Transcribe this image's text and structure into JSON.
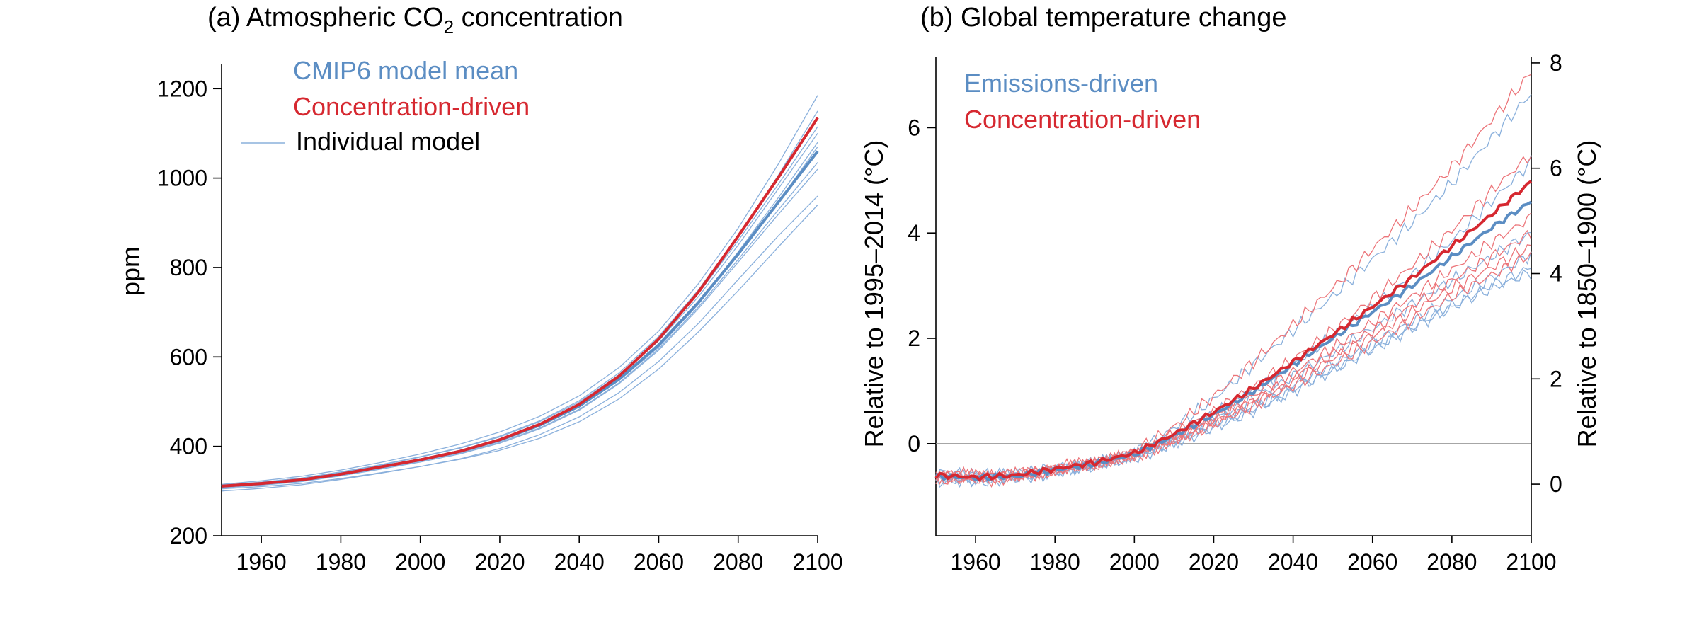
{
  "colors": {
    "emissions": "#5b8dc3",
    "concentration": "#d62830",
    "individual": "#8ab0dc",
    "individual_red": "#ec7479",
    "zero_line": "#999999"
  },
  "chart_data": [
    {
      "type": "line",
      "title_prefix": "(a) Atmospheric CO",
      "title_sub": "2",
      "title_suffix": " concentration",
      "ylabel": "ppm",
      "xlim": [
        1950,
        2100
      ],
      "ylim": [
        200,
        1240
      ],
      "xticks": [
        1960,
        1980,
        2000,
        2020,
        2040,
        2060,
        2080,
        2100
      ],
      "yticks": [
        200,
        400,
        600,
        800,
        1000,
        1200
      ],
      "legend": {
        "placement": "top-left",
        "entries": [
          "CMIP6 model mean",
          "Concentration-driven",
          "Individual model"
        ]
      },
      "x": [
        1950,
        1960,
        1970,
        1980,
        1990,
        2000,
        2010,
        2020,
        2030,
        2040,
        2050,
        2060,
        2070,
        2080,
        2090,
        2100
      ],
      "series": [
        {
          "name": "CMIP6 model mean",
          "role": "mean-emissions",
          "values": [
            311,
            317,
            325,
            338,
            354,
            370,
            389,
            414,
            447,
            490,
            550,
            627,
            722,
            830,
            945,
            1060
          ]
        },
        {
          "name": "Concentration-driven",
          "role": "mean-concentration",
          "values": [
            311,
            317,
            325,
            338,
            354,
            370,
            389,
            415,
            449,
            494,
            557,
            640,
            745,
            870,
            1000,
            1135
          ]
        }
      ],
      "individual_models": [
        [
          312,
          320,
          329,
          342,
          358,
          376,
          396,
          421,
          455,
          499,
          560,
          640,
          742,
          860,
          985,
          1115
        ],
        [
          309,
          315,
          323,
          336,
          352,
          368,
          387,
          412,
          445,
          488,
          547,
          622,
          718,
          828,
          945,
          1070
        ],
        [
          300,
          306,
          314,
          326,
          340,
          355,
          372,
          395,
          426,
          466,
          520,
          590,
          675,
          773,
          870,
          960
        ],
        [
          307,
          313,
          321,
          334,
          349,
          365,
          383,
          407,
          439,
          481,
          540,
          615,
          708,
          812,
          918,
          1020
        ],
        [
          315,
          323,
          333,
          347,
          364,
          383,
          405,
          432,
          467,
          513,
          576,
          658,
          764,
          888,
          1030,
          1185
        ],
        [
          310,
          316,
          324,
          337,
          353,
          369,
          388,
          413,
          446,
          489,
          549,
          625,
          722,
          835,
          955,
          1080
        ],
        [
          305,
          310,
          317,
          328,
          341,
          355,
          371,
          391,
          418,
          455,
          506,
          573,
          656,
          748,
          845,
          940
        ],
        [
          313,
          320,
          329,
          343,
          359,
          377,
          397,
          423,
          457,
          502,
          564,
          646,
          750,
          872,
          1005,
          1150
        ],
        [
          308,
          314,
          322,
          335,
          351,
          367,
          385,
          409,
          441,
          483,
          542,
          618,
          712,
          818,
          928,
          1035
        ],
        [
          311,
          317,
          326,
          339,
          355,
          372,
          391,
          417,
          450,
          495,
          557,
          636,
          735,
          850,
          975,
          1100
        ]
      ]
    },
    {
      "type": "line",
      "title": "(b) Global temperature change",
      "ylabel": "Relative to 1995–2014 (°C)",
      "ylabel_right": "Relative to 1850–1900 (°C)",
      "xlim": [
        1950,
        2100
      ],
      "ylim": [
        -1.75,
        7.35
      ],
      "yticks": [
        0,
        2,
        4,
        6
      ],
      "ylim_right": [
        -0.98,
        8.12
      ],
      "yticks_right": [
        0,
        2,
        4,
        6,
        8
      ],
      "xticks": [
        1960,
        1980,
        2000,
        2020,
        2040,
        2060,
        2080,
        2100
      ],
      "zero_line": 0,
      "legend": {
        "placement": "top-left",
        "entries": [
          "Emissions-driven",
          "Concentration-driven"
        ]
      },
      "x": [
        1950,
        1960,
        1970,
        1980,
        1990,
        2000,
        2010,
        2020,
        2030,
        2040,
        2050,
        2060,
        2070,
        2080,
        2090,
        2100
      ],
      "series": [
        {
          "name": "Emissions-driven",
          "role": "mean-emissions",
          "values": [
            -0.62,
            -0.65,
            -0.62,
            -0.5,
            -0.38,
            -0.2,
            0.15,
            0.55,
            1.0,
            1.5,
            2.0,
            2.5,
            3.0,
            3.55,
            4.1,
            4.6
          ]
        },
        {
          "name": "Concentration-driven",
          "role": "mean-concentration",
          "values": [
            -0.6,
            -0.64,
            -0.6,
            -0.48,
            -0.36,
            -0.18,
            0.18,
            0.6,
            1.05,
            1.55,
            2.07,
            2.6,
            3.15,
            3.75,
            4.35,
            4.98
          ]
        }
      ],
      "individual_models_emissions": [
        [
          -0.7,
          -0.72,
          -0.68,
          -0.55,
          -0.4,
          -0.18,
          0.3,
          0.85,
          1.5,
          2.15,
          2.8,
          3.5,
          4.2,
          4.95,
          5.8,
          6.65
        ],
        [
          -0.55,
          -0.6,
          -0.58,
          -0.48,
          -0.36,
          -0.22,
          0.15,
          0.55,
          1.0,
          1.5,
          2.05,
          2.6,
          3.2,
          3.85,
          4.6,
          5.35
        ],
        [
          -0.65,
          -0.68,
          -0.64,
          -0.52,
          -0.42,
          -0.28,
          0.0,
          0.3,
          0.62,
          1.0,
          1.4,
          1.8,
          2.2,
          2.6,
          3.0,
          3.35
        ],
        [
          -0.6,
          -0.62,
          -0.6,
          -0.5,
          -0.4,
          -0.24,
          0.05,
          0.38,
          0.72,
          1.1,
          1.5,
          1.9,
          2.32,
          2.75,
          3.15,
          3.6
        ],
        [
          -0.58,
          -0.6,
          -0.58,
          -0.46,
          -0.36,
          -0.2,
          0.1,
          0.45,
          0.85,
          1.28,
          1.72,
          2.18,
          2.65,
          3.1,
          3.55,
          4.0
        ],
        [
          -0.66,
          -0.7,
          -0.65,
          -0.53,
          -0.41,
          -0.25,
          0.02,
          0.32,
          0.65,
          1.02,
          1.4,
          1.8,
          2.2,
          2.6,
          2.95,
          3.25
        ]
      ],
      "individual_models_concentration": [
        [
          -0.68,
          -0.7,
          -0.66,
          -0.52,
          -0.38,
          -0.15,
          0.32,
          0.9,
          1.55,
          2.25,
          2.95,
          3.7,
          4.45,
          5.25,
          6.15,
          7.05
        ],
        [
          -0.56,
          -0.6,
          -0.57,
          -0.46,
          -0.34,
          -0.2,
          0.18,
          0.6,
          1.08,
          1.6,
          2.15,
          2.75,
          3.38,
          4.05,
          4.8,
          5.5
        ],
        [
          -0.64,
          -0.66,
          -0.62,
          -0.5,
          -0.4,
          -0.24,
          0.06,
          0.4,
          0.78,
          1.2,
          1.62,
          2.05,
          2.5,
          2.95,
          3.35,
          3.75
        ],
        [
          -0.6,
          -0.63,
          -0.6,
          -0.49,
          -0.38,
          -0.22,
          0.08,
          0.44,
          0.82,
          1.25,
          1.7,
          2.15,
          2.62,
          3.1,
          3.55,
          4.0
        ],
        [
          -0.62,
          -0.65,
          -0.61,
          -0.5,
          -0.39,
          -0.23,
          0.04,
          0.36,
          0.72,
          1.1,
          1.5,
          1.92,
          2.35,
          2.8,
          3.2,
          3.6
        ],
        [
          -0.58,
          -0.61,
          -0.58,
          -0.47,
          -0.36,
          -0.2,
          0.12,
          0.5,
          0.92,
          1.36,
          1.82,
          2.3,
          2.8,
          3.3,
          3.82,
          4.3
        ]
      ]
    }
  ]
}
